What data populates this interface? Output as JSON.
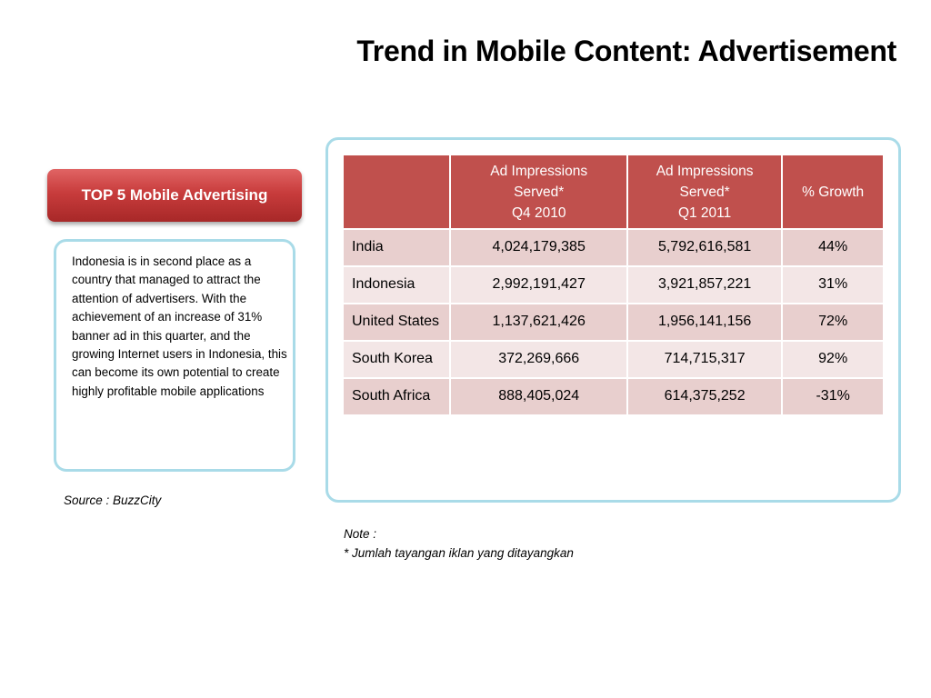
{
  "title": "Trend in Mobile Content: Advertisement",
  "top5_label": "TOP 5 Mobile Advertising",
  "description": "Indonesia is in second place as a country that managed to attract the attention of advertisers. With the achievement of an increase of 31% banner ad in this quarter, and the growing Internet users in Indonesia, this can become its own potential to create highly profitable mobile applications",
  "source": "Source : BuzzCity",
  "table": {
    "headers": [
      "",
      "Ad Impressions Served* Q4 2010",
      "Ad Impressions Served* Q1 2011",
      "% Growth"
    ],
    "header_lines": {
      "col1": [
        "Ad Impressions",
        "Served*",
        "Q4 2010"
      ],
      "col2": [
        "Ad Impressions",
        "Served*",
        "Q1 2011"
      ],
      "col3": "% Growth"
    },
    "rows": [
      {
        "country": "India",
        "q4_2010": "4,024,179,385",
        "q1_2011": "5,792,616,581",
        "growth": "44%"
      },
      {
        "country": "Indonesia",
        "q4_2010": "2,992,191,427",
        "q1_2011": "3,921,857,221",
        "growth": "31%"
      },
      {
        "country": "United States",
        "q4_2010": "1,137,621,426",
        "q1_2011": "1,956,141,156",
        "growth": "72%"
      },
      {
        "country": "South Korea",
        "q4_2010": "372,269,666",
        "q1_2011": "714,715,317",
        "growth": "92%"
      },
      {
        "country": "South Africa",
        "q4_2010": "888,405,024",
        "q1_2011": "614,375,252",
        "growth": "-31%"
      }
    ]
  },
  "note": {
    "label": "Note :",
    "text": "* Jumlah tayangan iklan yang ditayangkan"
  },
  "colors": {
    "header_red": "#c0504d",
    "row_dark": "#e8cfce",
    "row_light": "#f3e6e6",
    "frame_border": "#a9dbe8",
    "button_red": "#c83c3c"
  }
}
